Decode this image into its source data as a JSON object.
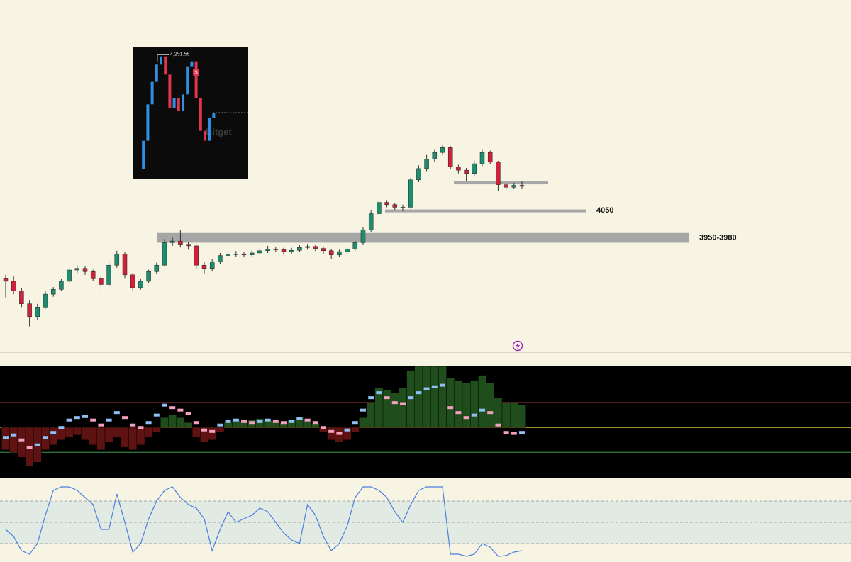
{
  "chart_data": [
    {
      "type": "candlestick",
      "open": [
        3840,
        3830,
        3800,
        3760,
        3720,
        3750,
        3790,
        3805,
        3830,
        3865,
        3870,
        3860,
        3840,
        3820,
        3880,
        3915,
        3850,
        3810,
        3830,
        3860,
        3880,
        3950,
        3955,
        3945,
        3940,
        3880,
        3870,
        3890,
        3910,
        3915,
        3915,
        3912,
        3918,
        3925,
        3930,
        3928,
        3922,
        3926,
        3935,
        3938,
        3932,
        3925,
        3912,
        3922,
        3930,
        3950,
        3990,
        4040,
        4075,
        4068,
        4060,
        4060,
        4145,
        4180,
        4210,
        4230,
        4245,
        4185,
        4175,
        4165,
        4195,
        4230,
        4200,
        4130,
        4122,
        4128
      ],
      "high": [
        3850,
        3845,
        3810,
        3770,
        3760,
        3800,
        3812,
        3838,
        3872,
        3880,
        3876,
        3866,
        3848,
        3892,
        3925,
        3920,
        3856,
        3838,
        3866,
        3888,
        3962,
        3966,
        3990,
        3952,
        3946,
        3890,
        3898,
        3918,
        3922,
        3924,
        3920,
        3926,
        3934,
        3940,
        3938,
        3934,
        3934,
        3944,
        3946,
        3944,
        3938,
        3930,
        3928,
        3936,
        3956,
        3998,
        4050,
        4085,
        4082,
        4074,
        4068,
        4152,
        4190,
        4222,
        4240,
        4252,
        4250,
        4192,
        4182,
        4205,
        4240,
        4236,
        4204,
        4136,
        4136,
        4140
      ],
      "low": [
        3780,
        3790,
        3750,
        3690,
        3710,
        3745,
        3782,
        3800,
        3825,
        3855,
        3850,
        3832,
        3805,
        3815,
        3872,
        3840,
        3800,
        3804,
        3825,
        3854,
        3876,
        3940,
        3935,
        3928,
        3870,
        3855,
        3862,
        3884,
        3904,
        3906,
        3904,
        3906,
        3912,
        3918,
        3920,
        3914,
        3916,
        3920,
        3928,
        3924,
        3916,
        3900,
        3906,
        3916,
        3924,
        3944,
        3984,
        4034,
        4060,
        4050,
        4048,
        4055,
        4138,
        4172,
        4202,
        4222,
        4178,
        4165,
        4140,
        4158,
        4188,
        4195,
        4110,
        4112,
        4116,
        4118
      ],
      "close": [
        3830,
        3800,
        3760,
        3720,
        3750,
        3790,
        3805,
        3830,
        3865,
        3870,
        3860,
        3840,
        3820,
        3880,
        3915,
        3850,
        3810,
        3830,
        3860,
        3880,
        3950,
        3955,
        3945,
        3940,
        3880,
        3870,
        3890,
        3910,
        3915,
        3915,
        3912,
        3918,
        3925,
        3930,
        3928,
        3922,
        3926,
        3935,
        3938,
        3932,
        3925,
        3912,
        3922,
        3930,
        3950,
        3990,
        4040,
        4075,
        4068,
        4060,
        4060,
        4145,
        4180,
        4210,
        4230,
        4245,
        4185,
        4175,
        4165,
        4195,
        4230,
        4200,
        4130,
        4122,
        4128,
        4125
      ],
      "up_color": "#1e8c6e",
      "down_color": "#d0213a",
      "ylim": [
        3678,
        4292
      ],
      "zones": [
        {
          "low": 4133,
          "high": 4140
        },
        {
          "low": 4046,
          "high": 4053,
          "label": "4050"
        },
        {
          "low": 3950,
          "high": 3980,
          "label": "3950-3980"
        }
      ]
    },
    {
      "type": "oscillator",
      "histogram": [
        -45,
        -50,
        -60,
        -78,
        -70,
        -45,
        -35,
        -25,
        -20,
        -15,
        -25,
        -35,
        -45,
        -30,
        -20,
        -40,
        -45,
        -35,
        -20,
        -10,
        20,
        25,
        20,
        10,
        -20,
        -30,
        -25,
        -10,
        10,
        15,
        12,
        15,
        18,
        15,
        12,
        10,
        15,
        20,
        15,
        8,
        -10,
        -25,
        -30,
        -25,
        -10,
        20,
        50,
        80,
        75,
        70,
        80,
        115,
        123,
        123,
        123,
        123,
        100,
        95,
        90,
        95,
        105,
        90,
        60,
        50,
        50,
        45
      ],
      "signal": [
        -20,
        -15,
        -25,
        -40,
        -35,
        -20,
        -10,
        0,
        15,
        20,
        22,
        15,
        5,
        15,
        30,
        20,
        5,
        0,
        10,
        25,
        45,
        40,
        35,
        28,
        10,
        -5,
        -8,
        5,
        12,
        15,
        12,
        10,
        12,
        15,
        12,
        10,
        12,
        18,
        15,
        10,
        0,
        -8,
        -12,
        -5,
        10,
        35,
        60,
        70,
        60,
        50,
        48,
        60,
        70,
        78,
        82,
        85,
        40,
        30,
        20,
        25,
        35,
        30,
        5,
        -10,
        -12,
        -10
      ],
      "ylim": [
        -101,
        123
      ],
      "levels": [
        {
          "value": 50,
          "color": "#d9534f"
        },
        {
          "value": 0,
          "color": "#e0c341"
        },
        {
          "value": -50,
          "color": "#3d9a4a"
        }
      ],
      "positive_color": "#1f4d1c",
      "negative_color": "#5e1212",
      "rising_color": "#8fc0f5",
      "falling_color": "#f2a0bd"
    },
    {
      "type": "line",
      "values": [
        40,
        30,
        10,
        5,
        20,
        60,
        95,
        100,
        100,
        95,
        85,
        75,
        40,
        40,
        90,
        50,
        8,
        20,
        55,
        80,
        95,
        100,
        85,
        75,
        70,
        55,
        10,
        40,
        65,
        50,
        55,
        60,
        70,
        65,
        50,
        35,
        25,
        20,
        75,
        60,
        30,
        10,
        20,
        45,
        85,
        100,
        100,
        95,
        85,
        65,
        50,
        75,
        95,
        100,
        100,
        100,
        5,
        5,
        2,
        5,
        20,
        15,
        2,
        3,
        8,
        10
      ],
      "color": "#4a7fe0",
      "ylim": [
        0,
        100
      ],
      "levels": [
        80,
        50,
        20
      ],
      "band_color": "#e2ebe3"
    },
    {
      "type": "inset",
      "values": [
        3905,
        3990,
        4100,
        4170,
        4220,
        4245,
        4190,
        4090,
        4120,
        4080,
        4130,
        4215,
        4230,
        4120,
        4020,
        3990,
        4060,
        4075
      ],
      "ylim": [
        3880,
        4270
      ],
      "peak": {
        "value": 4251.56,
        "label": "4,251.56"
      },
      "signal_label": "S",
      "watermark": "Bitget",
      "color": "#2f8fe0"
    }
  ]
}
